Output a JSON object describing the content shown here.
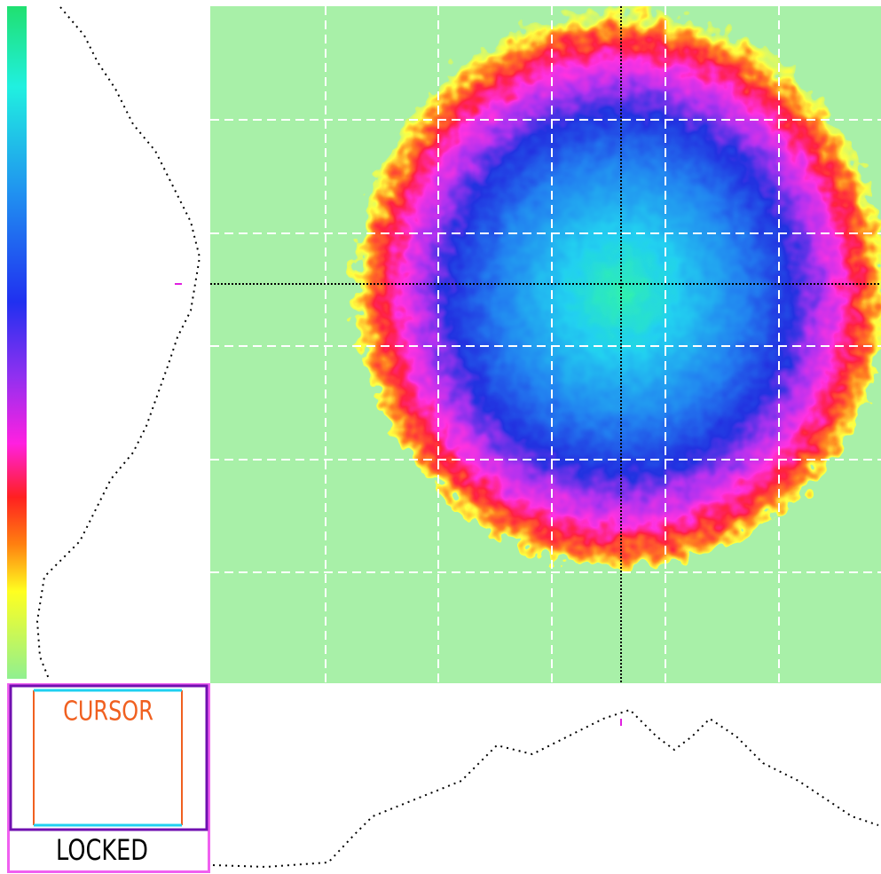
{
  "cursor_panel": {
    "title": "CURSOR",
    "status": "LOCKED"
  }
}
